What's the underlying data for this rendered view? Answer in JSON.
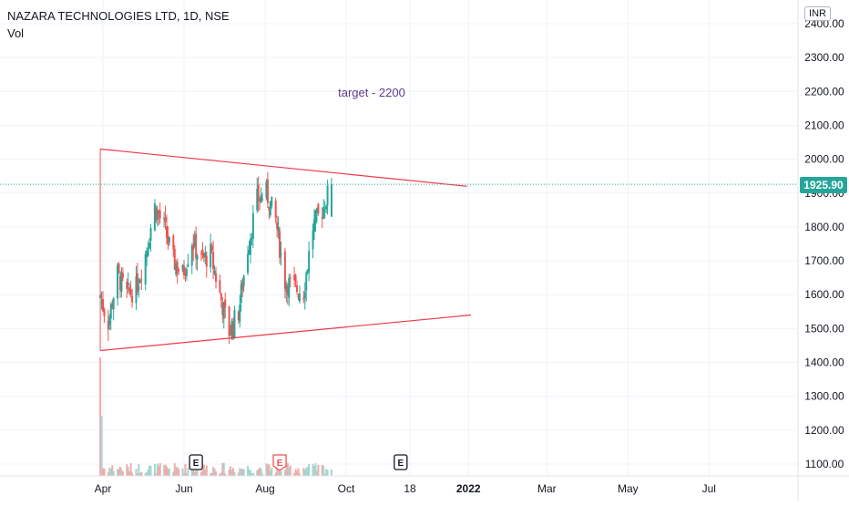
{
  "legend": {
    "symbol": "NAZARA TECHNOLOGIES LTD, 1D, NSE",
    "volume_label": "Vol"
  },
  "currency": "INR",
  "colors": {
    "up": "#26a69a",
    "down": "#ef5350",
    "trendline": "#f23645",
    "price_label_bg": "#26a69a",
    "grid": "#f0f3fa",
    "annotation": "#5b3b8c"
  },
  "annotation": {
    "text": "target - 2200"
  },
  "last_price": {
    "value": 1925.9,
    "label": "1925.90"
  },
  "y_axis": {
    "ticks": [
      "2400.00",
      "2300.00",
      "2200.00",
      "2100.00",
      "2000.00",
      "1900.00",
      "1800.00",
      "1700.00",
      "1600.00",
      "1500.00",
      "1400.00",
      "1300.00",
      "1200.00",
      "1100.00"
    ]
  },
  "x_axis": {
    "ticks": [
      "Apr",
      "Jun",
      "Aug",
      "Oct",
      "18",
      "2022",
      "Mar",
      "May",
      "Jul"
    ]
  },
  "earnings_badges": [
    {
      "label": "E",
      "date": "2021-06-10",
      "state": "past"
    },
    {
      "label": "E",
      "date": "2021-08-12",
      "state": "past-highlight"
    },
    {
      "label": "E",
      "date": "2021-11-11",
      "state": "upcoming"
    }
  ],
  "chart_data": {
    "type": "candlestick",
    "x_range": [
      "2021-03-30",
      "2022-07-25"
    ],
    "ylim": [
      1060,
      2430
    ],
    "closes": [
      {
        "date": "2021-03-30",
        "close": 1590
      },
      {
        "date": "2021-04-05",
        "close": 1520
      },
      {
        "date": "2021-04-12",
        "close": 1660
      },
      {
        "date": "2021-04-19",
        "close": 1600
      },
      {
        "date": "2021-04-26",
        "close": 1620
      },
      {
        "date": "2021-05-03",
        "close": 1720
      },
      {
        "date": "2021-05-10",
        "close": 1860
      },
      {
        "date": "2021-05-17",
        "close": 1800
      },
      {
        "date": "2021-05-24",
        "close": 1700
      },
      {
        "date": "2021-05-31",
        "close": 1660
      },
      {
        "date": "2021-06-07",
        "close": 1760
      },
      {
        "date": "2021-06-14",
        "close": 1700
      },
      {
        "date": "2021-06-21",
        "close": 1720
      },
      {
        "date": "2021-06-28",
        "close": 1600
      },
      {
        "date": "2021-07-05",
        "close": 1490
      },
      {
        "date": "2021-07-12",
        "close": 1550
      },
      {
        "date": "2021-07-19",
        "close": 1740
      },
      {
        "date": "2021-07-26",
        "close": 1880
      },
      {
        "date": "2021-08-02",
        "close": 1900
      },
      {
        "date": "2021-08-09",
        "close": 1820
      },
      {
        "date": "2021-08-16",
        "close": 1640
      },
      {
        "date": "2021-08-23",
        "close": 1620
      },
      {
        "date": "2021-08-30",
        "close": 1610
      },
      {
        "date": "2021-09-06",
        "close": 1800
      },
      {
        "date": "2021-09-13",
        "close": 1850
      },
      {
        "date": "2021-09-20",
        "close": 1925.9
      }
    ],
    "trendlines": [
      {
        "name": "upper",
        "from": {
          "date": "2021-03-30",
          "value": 2030
        },
        "to": {
          "date": "2021-12-31",
          "value": 1920
        }
      },
      {
        "name": "lower",
        "from": {
          "date": "2021-03-30",
          "value": 1435
        },
        "to": {
          "date": "2022-01-03",
          "value": 1540
        }
      }
    ],
    "grid": true
  }
}
